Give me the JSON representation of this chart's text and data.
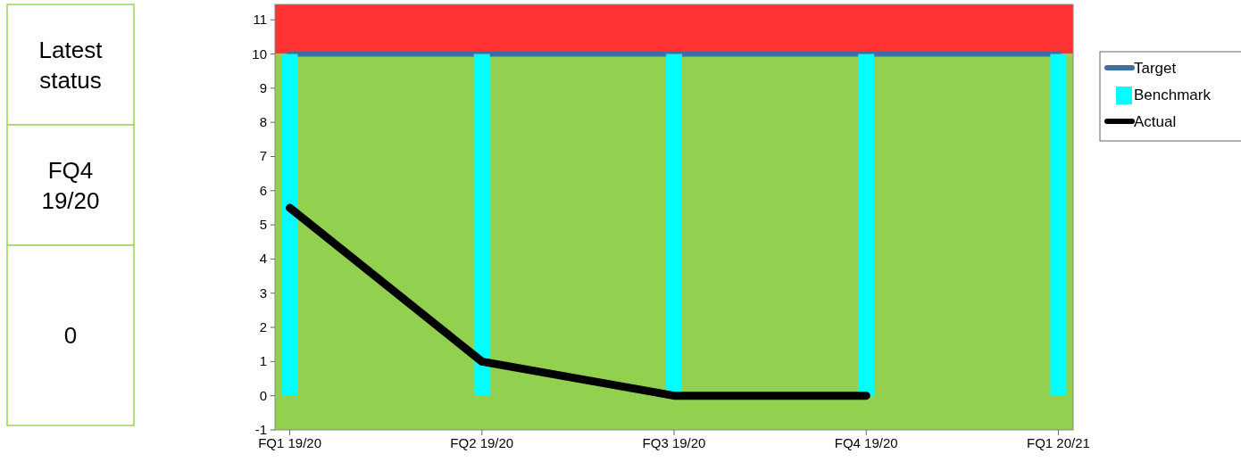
{
  "chart_data": [
    {
      "type": "other",
      "annotations": [
        "Latest status",
        "FQ4 19/20",
        "0"
      ]
    },
    {
      "type": "line",
      "categories": [
        "FQ1 19/20",
        "FQ2 19/20",
        "FQ3 19/20",
        "FQ4 19/20",
        "FQ1 20/21"
      ],
      "ylim": [
        -1,
        11.45
      ],
      "yticks": [
        -1,
        0,
        1,
        2,
        3,
        4,
        5,
        6,
        7,
        8,
        9,
        10,
        11
      ],
      "legend": "right",
      "bands": [
        {
          "axis": "y",
          "from": 10,
          "to": 11.45,
          "color": "#ff3333"
        },
        {
          "axis": "y",
          "from": -1,
          "to": 10,
          "color": "#92d050"
        }
      ],
      "series": [
        {
          "name": "Target",
          "type": "line",
          "color": "#3f6fa0",
          "values": [
            10,
            10,
            10,
            10,
            10
          ]
        },
        {
          "name": "Benchmark",
          "type": "bar",
          "color": "#00ffff",
          "values": [
            10,
            10,
            10,
            10,
            10
          ]
        },
        {
          "name": "Actual",
          "type": "line",
          "color": "#000000",
          "values": [
            5.5,
            1,
            0,
            0,
            null
          ]
        }
      ]
    }
  ]
}
